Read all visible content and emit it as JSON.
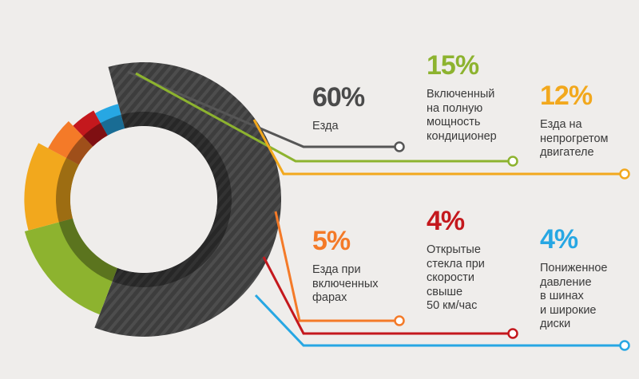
{
  "chart_data": {
    "type": "donut",
    "title": "",
    "series": [
      {
        "value": 60,
        "value_label": "60%",
        "description_lines": [
          "Езда"
        ],
        "color": "#4a4a4a"
      },
      {
        "value": 15,
        "value_label": "15%",
        "description_lines": [
          "Включенный",
          "на полную",
          "мощность",
          "кондиционер"
        ],
        "color": "#8db32f"
      },
      {
        "value": 12,
        "value_label": "12%",
        "description_lines": [
          "Езда на",
          "непрогретом",
          "двигателе"
        ],
        "color": "#f2a81d"
      },
      {
        "value": 5,
        "value_label": "5%",
        "description_lines": [
          "Езда при",
          "включенных",
          "фарах"
        ],
        "color": "#f47a28"
      },
      {
        "value": 4,
        "value_label": "4%",
        "description_lines": [
          "Открытые",
          "стекла при",
          "скорости",
          "свыше",
          "50 км/час"
        ],
        "color": "#c4181d"
      },
      {
        "value": 4,
        "value_label": "4%",
        "description_lines": [
          "Пониженное",
          "давление",
          "в шинах",
          "и широкие",
          "диски"
        ],
        "color": "#27a7e3"
      }
    ]
  }
}
